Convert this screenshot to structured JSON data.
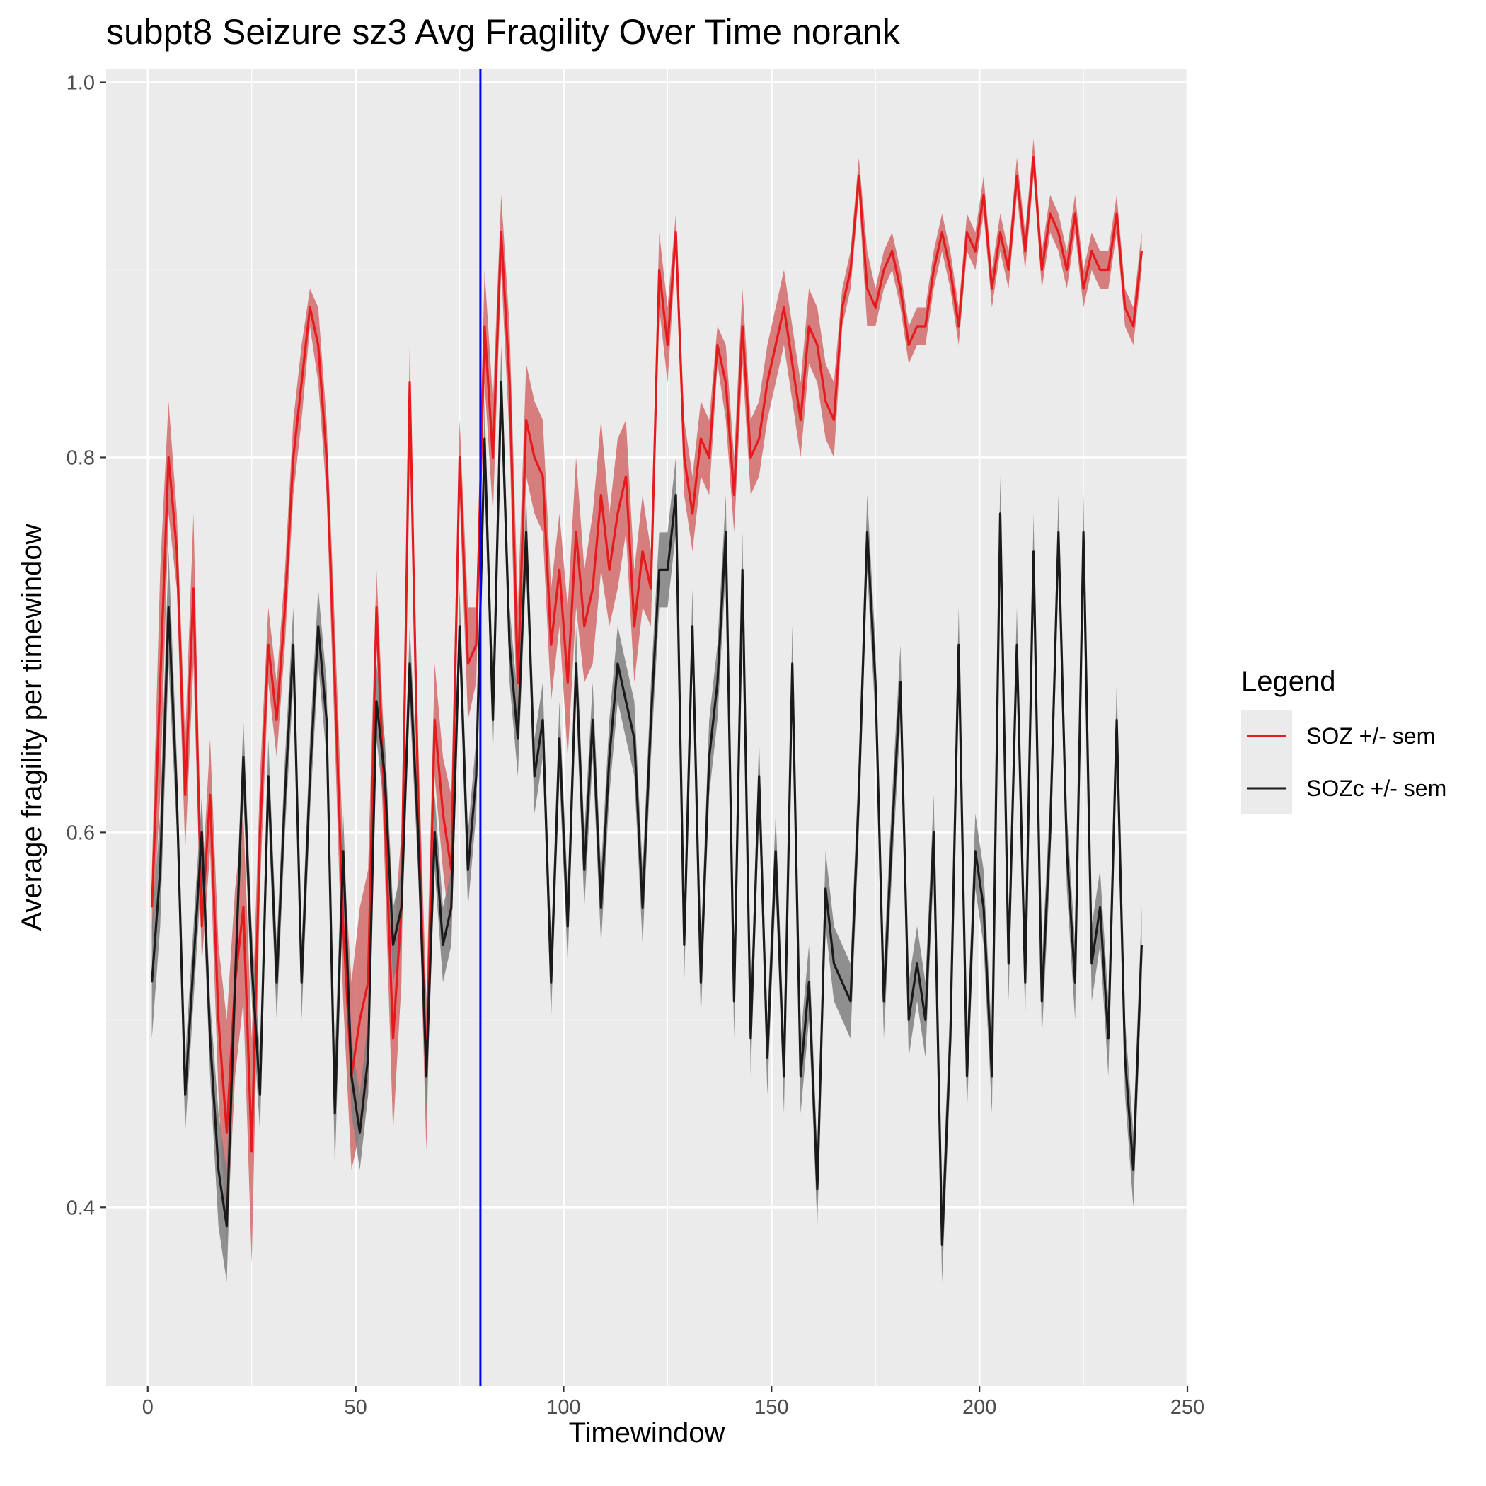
{
  "chart_data": {
    "type": "line",
    "title": "subpt8 Seizure sz3 Avg Fragility Over Time norank",
    "xlabel": "Timewindow",
    "ylabel": "Average fragility per timewindow",
    "xlim": [
      -10,
      250
    ],
    "ylim": [
      0.305,
      1.007
    ],
    "x_ticks": [
      0,
      50,
      100,
      150,
      200,
      250
    ],
    "x_tick_labels": [
      "0",
      "50",
      "100",
      "150",
      "200",
      "250"
    ],
    "y_ticks": [
      0.4,
      0.6,
      0.8,
      1.0
    ],
    "y_tick_labels": [
      "0.4",
      "0.6",
      "0.8",
      "1.0"
    ],
    "grid": true,
    "background": "#ebebeb",
    "vertical_marker": {
      "x": 80,
      "color": "#0000ff"
    },
    "legend": {
      "title": "Legend",
      "position": "right"
    },
    "series": [
      {
        "name": "SOZ +/- sem",
        "color": "#e41a1c",
        "ribbon_color": "#d26a6a",
        "x": [
          1,
          3,
          5,
          7,
          9,
          11,
          13,
          15,
          17,
          19,
          21,
          23,
          25,
          27,
          29,
          31,
          33,
          35,
          37,
          39,
          41,
          43,
          45,
          47,
          49,
          51,
          53,
          55,
          57,
          59,
          61,
          63,
          65,
          67,
          69,
          71,
          73,
          75,
          77,
          79,
          81,
          83,
          85,
          87,
          89,
          91,
          93,
          95,
          97,
          99,
          101,
          103,
          105,
          107,
          109,
          111,
          113,
          115,
          117,
          119,
          121,
          123,
          125,
          127,
          129,
          131,
          133,
          135,
          137,
          139,
          141,
          143,
          145,
          147,
          149,
          151,
          153,
          155,
          157,
          159,
          161,
          163,
          165,
          167,
          169,
          171,
          173,
          175,
          177,
          179,
          181,
          183,
          185,
          187,
          189,
          191,
          193,
          195,
          197,
          199,
          201,
          203,
          205,
          207,
          209,
          211,
          213,
          215,
          217,
          219,
          221,
          223,
          225,
          227,
          229,
          231,
          233,
          235,
          237,
          239
        ],
        "y": [
          0.56,
          0.68,
          0.8,
          0.75,
          0.62,
          0.73,
          0.55,
          0.62,
          0.5,
          0.44,
          0.52,
          0.56,
          0.43,
          0.6,
          0.7,
          0.66,
          0.72,
          0.8,
          0.84,
          0.88,
          0.86,
          0.8,
          0.68,
          0.55,
          0.47,
          0.5,
          0.52,
          0.72,
          0.61,
          0.49,
          0.56,
          0.84,
          0.62,
          0.47,
          0.66,
          0.61,
          0.58,
          0.8,
          0.69,
          0.7,
          0.87,
          0.8,
          0.92,
          0.84,
          0.68,
          0.82,
          0.8,
          0.79,
          0.7,
          0.74,
          0.68,
          0.76,
          0.71,
          0.73,
          0.78,
          0.74,
          0.77,
          0.79,
          0.71,
          0.75,
          0.73,
          0.9,
          0.86,
          0.92,
          0.8,
          0.77,
          0.81,
          0.8,
          0.86,
          0.84,
          0.78,
          0.87,
          0.8,
          0.81,
          0.84,
          0.86,
          0.88,
          0.85,
          0.82,
          0.87,
          0.86,
          0.83,
          0.82,
          0.88,
          0.9,
          0.95,
          0.89,
          0.88,
          0.9,
          0.91,
          0.89,
          0.86,
          0.87,
          0.87,
          0.9,
          0.92,
          0.9,
          0.87,
          0.92,
          0.91,
          0.94,
          0.89,
          0.92,
          0.9,
          0.95,
          0.91,
          0.96,
          0.9,
          0.93,
          0.92,
          0.9,
          0.93,
          0.89,
          0.91,
          0.9,
          0.9,
          0.93,
          0.88,
          0.87,
          0.91
        ],
        "sem": [
          0.02,
          0.06,
          0.03,
          0.02,
          0.03,
          0.04,
          0.02,
          0.03,
          0.04,
          0.06,
          0.05,
          0.05,
          0.06,
          0.03,
          0.02,
          0.02,
          0.02,
          0.02,
          0.02,
          0.01,
          0.02,
          0.02,
          0.03,
          0.04,
          0.05,
          0.06,
          0.06,
          0.02,
          0.03,
          0.05,
          0.04,
          0.02,
          0.03,
          0.04,
          0.03,
          0.03,
          0.04,
          0.02,
          0.03,
          0.02,
          0.03,
          0.03,
          0.02,
          0.03,
          0.04,
          0.03,
          0.03,
          0.03,
          0.03,
          0.03,
          0.04,
          0.04,
          0.03,
          0.04,
          0.04,
          0.03,
          0.04,
          0.03,
          0.03,
          0.03,
          0.02,
          0.02,
          0.02,
          0.01,
          0.02,
          0.02,
          0.02,
          0.02,
          0.01,
          0.02,
          0.02,
          0.02,
          0.02,
          0.02,
          0.02,
          0.02,
          0.02,
          0.02,
          0.02,
          0.02,
          0.02,
          0.02,
          0.02,
          0.01,
          0.01,
          0.01,
          0.02,
          0.01,
          0.01,
          0.01,
          0.01,
          0.01,
          0.01,
          0.01,
          0.01,
          0.01,
          0.01,
          0.01,
          0.01,
          0.01,
          0.01,
          0.01,
          0.01,
          0.01,
          0.01,
          0.01,
          0.01,
          0.01,
          0.01,
          0.01,
          0.01,
          0.01,
          0.01,
          0.01,
          0.01,
          0.01,
          0.01,
          0.01,
          0.01,
          0.01
        ]
      },
      {
        "name": "SOZc +/- sem",
        "color": "#1a1a1a",
        "ribbon_color": "#7f7f7f",
        "x": [
          1,
          3,
          5,
          7,
          9,
          11,
          13,
          15,
          17,
          19,
          21,
          23,
          25,
          27,
          29,
          31,
          33,
          35,
          37,
          39,
          41,
          43,
          45,
          47,
          49,
          51,
          53,
          55,
          57,
          59,
          61,
          63,
          65,
          67,
          69,
          71,
          73,
          75,
          77,
          79,
          81,
          83,
          85,
          87,
          89,
          91,
          93,
          95,
          97,
          99,
          101,
          103,
          105,
          107,
          109,
          111,
          113,
          115,
          117,
          119,
          121,
          123,
          125,
          127,
          129,
          131,
          133,
          135,
          137,
          139,
          141,
          143,
          145,
          147,
          149,
          151,
          153,
          155,
          157,
          159,
          161,
          163,
          165,
          167,
          169,
          171,
          173,
          175,
          177,
          179,
          181,
          183,
          185,
          187,
          189,
          191,
          193,
          195,
          197,
          199,
          201,
          203,
          205,
          207,
          209,
          211,
          213,
          215,
          217,
          219,
          221,
          223,
          225,
          227,
          229,
          231,
          233,
          235,
          237,
          239
        ],
        "y": [
          0.52,
          0.58,
          0.72,
          0.62,
          0.46,
          0.53,
          0.6,
          0.49,
          0.42,
          0.39,
          0.52,
          0.64,
          0.53,
          0.46,
          0.63,
          0.52,
          0.62,
          0.7,
          0.52,
          0.63,
          0.71,
          0.66,
          0.45,
          0.59,
          0.47,
          0.44,
          0.48,
          0.67,
          0.63,
          0.54,
          0.56,
          0.69,
          0.6,
          0.47,
          0.6,
          0.54,
          0.56,
          0.71,
          0.58,
          0.63,
          0.81,
          0.66,
          0.84,
          0.7,
          0.65,
          0.76,
          0.63,
          0.66,
          0.52,
          0.65,
          0.55,
          0.69,
          0.58,
          0.66,
          0.56,
          0.64,
          0.69,
          0.67,
          0.65,
          0.56,
          0.66,
          0.74,
          0.74,
          0.78,
          0.54,
          0.71,
          0.52,
          0.64,
          0.68,
          0.76,
          0.51,
          0.74,
          0.49,
          0.63,
          0.48,
          0.59,
          0.47,
          0.69,
          0.47,
          0.52,
          0.41,
          0.57,
          0.53,
          0.52,
          0.51,
          0.62,
          0.76,
          0.68,
          0.51,
          0.6,
          0.68,
          0.5,
          0.53,
          0.5,
          0.6,
          0.38,
          0.49,
          0.7,
          0.47,
          0.59,
          0.56,
          0.47,
          0.77,
          0.53,
          0.7,
          0.52,
          0.75,
          0.51,
          0.6,
          0.76,
          0.59,
          0.52,
          0.76,
          0.53,
          0.56,
          0.49,
          0.66,
          0.48,
          0.42,
          0.54
        ],
        "sem": [
          0.03,
          0.03,
          0.03,
          0.02,
          0.02,
          0.02,
          0.02,
          0.02,
          0.03,
          0.03,
          0.02,
          0.02,
          0.02,
          0.02,
          0.02,
          0.02,
          0.02,
          0.02,
          0.02,
          0.02,
          0.02,
          0.02,
          0.03,
          0.02,
          0.02,
          0.02,
          0.02,
          0.02,
          0.02,
          0.02,
          0.02,
          0.02,
          0.02,
          0.02,
          0.02,
          0.02,
          0.02,
          0.02,
          0.02,
          0.02,
          0.02,
          0.02,
          0.02,
          0.02,
          0.02,
          0.02,
          0.02,
          0.02,
          0.02,
          0.02,
          0.02,
          0.02,
          0.02,
          0.02,
          0.02,
          0.02,
          0.02,
          0.02,
          0.02,
          0.02,
          0.02,
          0.02,
          0.02,
          0.02,
          0.02,
          0.02,
          0.02,
          0.02,
          0.02,
          0.02,
          0.02,
          0.02,
          0.02,
          0.02,
          0.02,
          0.02,
          0.02,
          0.02,
          0.02,
          0.02,
          0.02,
          0.02,
          0.02,
          0.02,
          0.02,
          0.02,
          0.02,
          0.02,
          0.02,
          0.02,
          0.02,
          0.02,
          0.02,
          0.02,
          0.02,
          0.02,
          0.02,
          0.02,
          0.02,
          0.02,
          0.02,
          0.02,
          0.02,
          0.02,
          0.02,
          0.02,
          0.02,
          0.02,
          0.02,
          0.02,
          0.02,
          0.02,
          0.02,
          0.02,
          0.02,
          0.02,
          0.02,
          0.02,
          0.02,
          0.02
        ]
      }
    ]
  }
}
